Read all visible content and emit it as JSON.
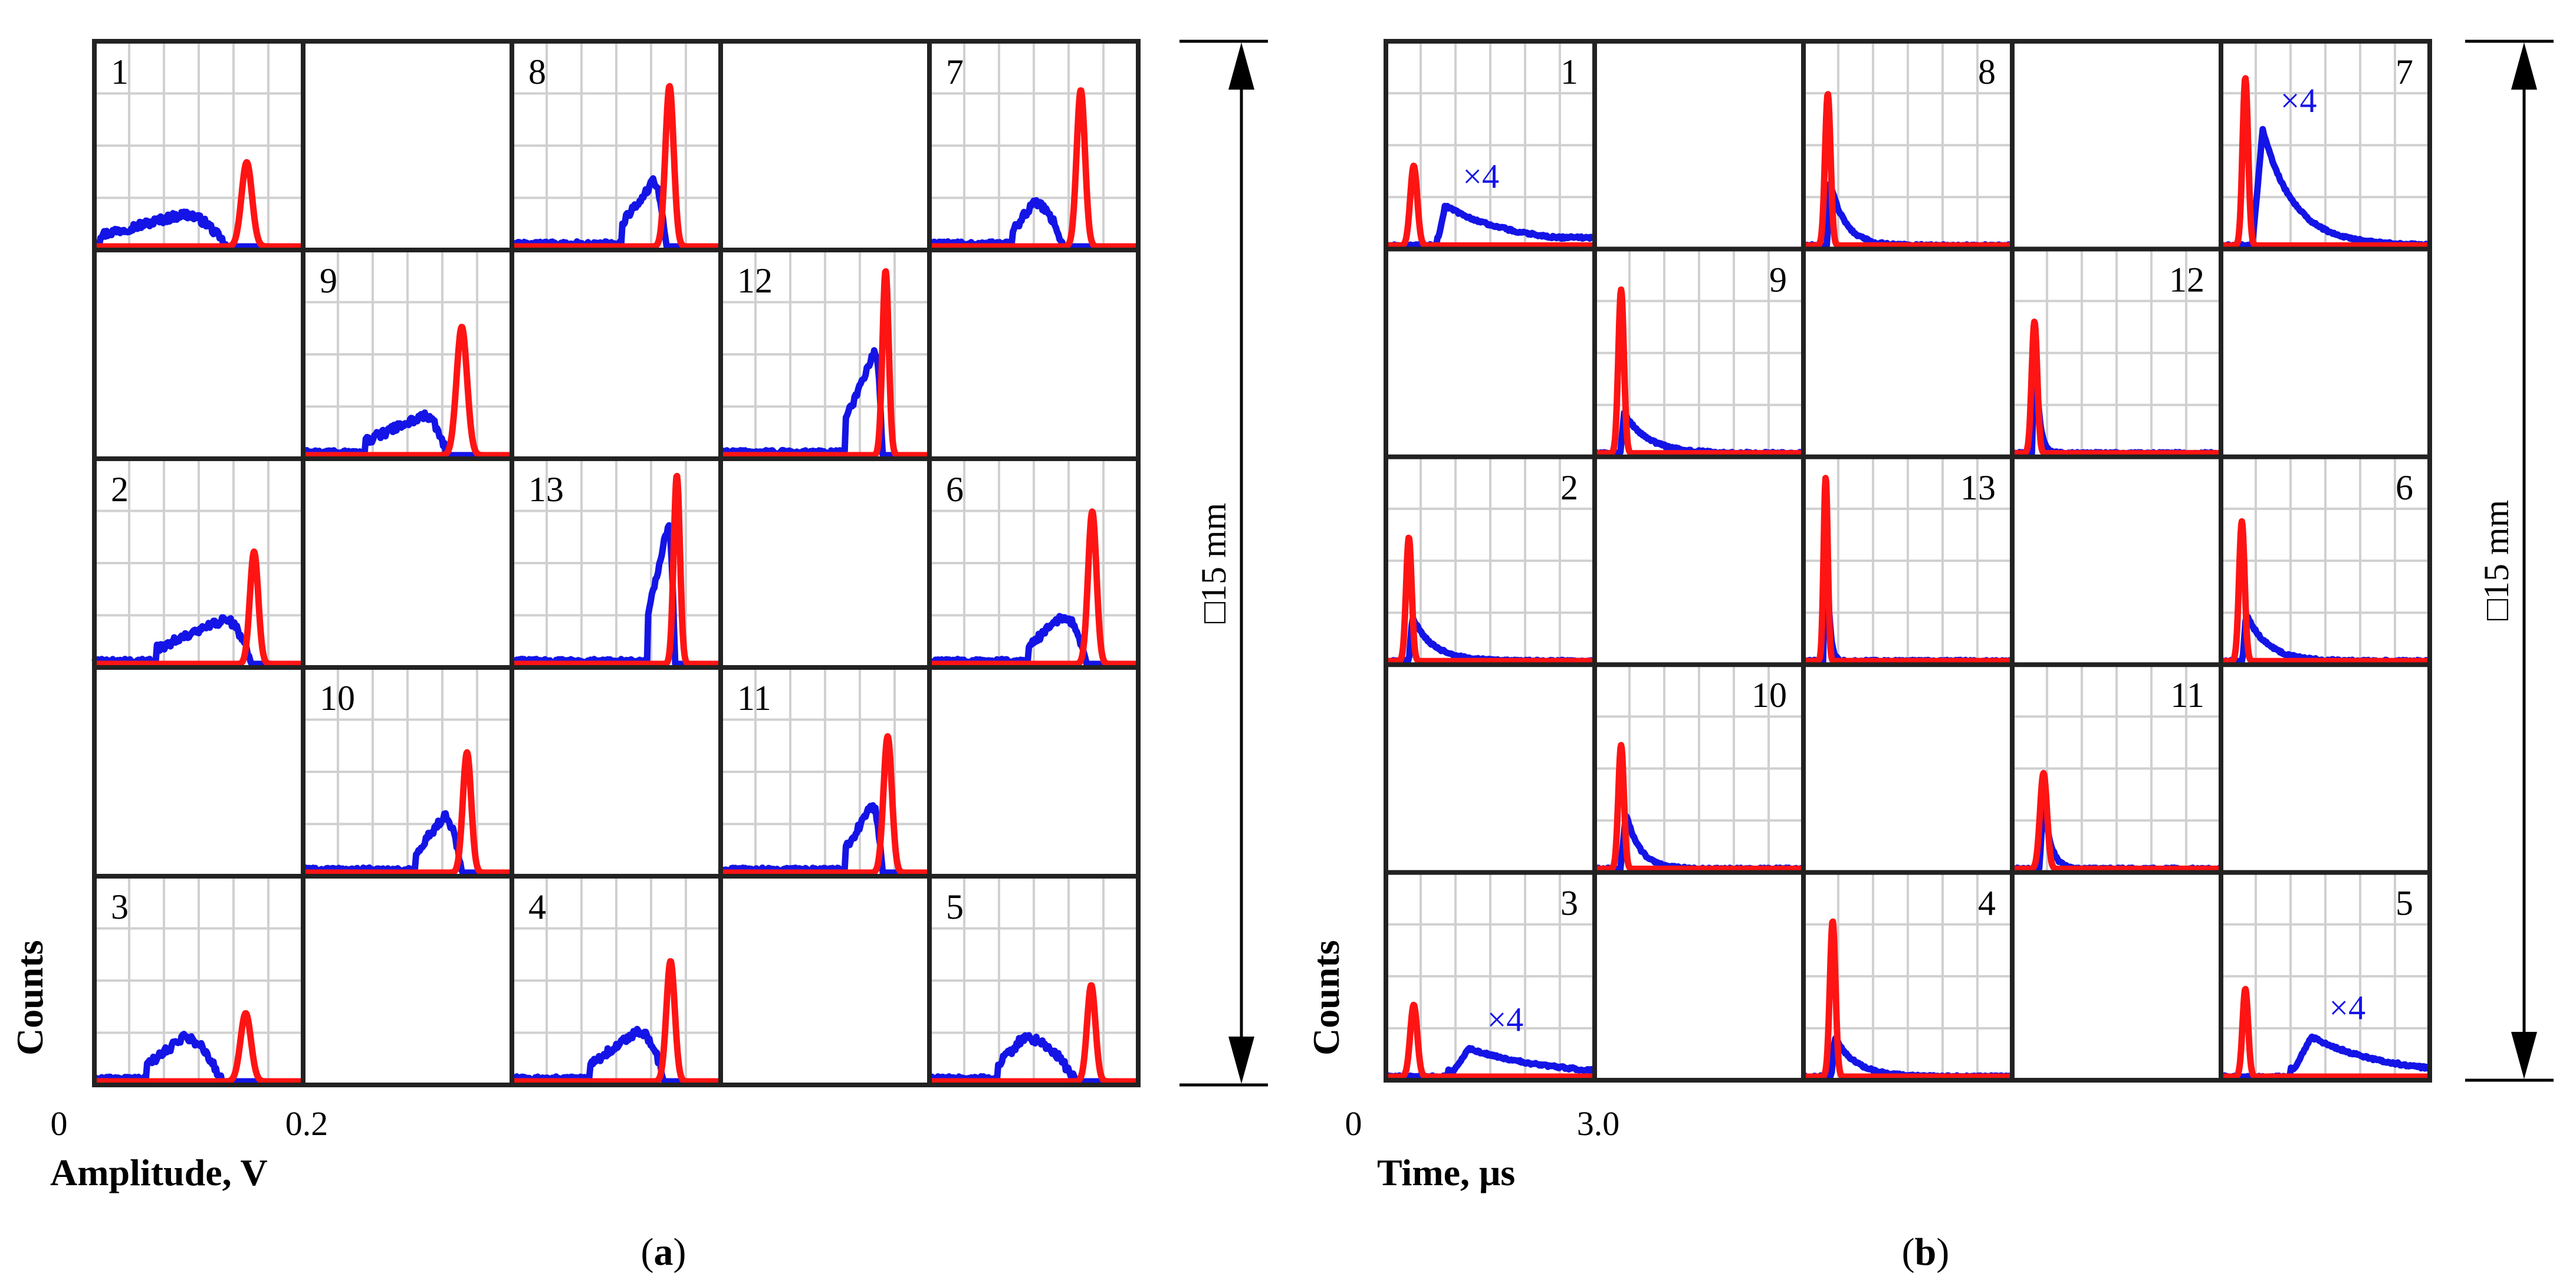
{
  "figure": {
    "colors": {
      "red": "#ff1414",
      "blue": "#1414e6",
      "grid": "#d0d0d0",
      "frame": "#222222"
    },
    "dimension_label": "□15 mm"
  },
  "chart_data": [
    {
      "type": "line",
      "panel_label": "(a)",
      "caption_letter": "a",
      "xlabel": "Amplitude, V",
      "ylabel": "Counts",
      "x_tick_start": "0",
      "x_tick_end": "0.2",
      "xlim": [
        0,
        0.2
      ],
      "series_names": [
        "red",
        "blue"
      ],
      "layout": [
        [
          1,
          null,
          8,
          null,
          7
        ],
        [
          null,
          9,
          null,
          12,
          null
        ],
        [
          2,
          null,
          13,
          null,
          6
        ],
        [
          null,
          10,
          null,
          11,
          null
        ],
        [
          3,
          null,
          4,
          null,
          5
        ]
      ],
      "cells": [
        {
          "id": 1,
          "red": {
            "peak_x": 0.146,
            "height": 0.42,
            "width": 0.005
          },
          "blue": {
            "type": "broad",
            "start": 0.005,
            "end": 0.126,
            "height": 0.16,
            "center": 0.085
          }
        },
        {
          "id": 8,
          "red": {
            "peak_x": 0.151,
            "height": 0.8,
            "width": 0.004
          },
          "blue": {
            "type": "broad",
            "start": 0.105,
            "end": 0.148,
            "height": 0.32,
            "center": 0.135
          }
        },
        {
          "id": 7,
          "red": {
            "peak_x": 0.145,
            "height": 0.78,
            "width": 0.004
          },
          "blue": {
            "type": "broad",
            "start": 0.08,
            "end": 0.128,
            "height": 0.22,
            "center": 0.1
          }
        },
        {
          "id": 9,
          "red": {
            "peak_x": 0.152,
            "height": 0.64,
            "width": 0.005
          },
          "blue": {
            "type": "broad",
            "start": 0.06,
            "end": 0.138,
            "height": 0.2,
            "center": 0.115
          }
        },
        {
          "id": 12,
          "red": {
            "peak_x": 0.158,
            "height": 0.92,
            "width": 0.003
          },
          "blue": {
            "type": "broad",
            "start": 0.12,
            "end": 0.155,
            "height": 0.52,
            "center": 0.148
          }
        },
        {
          "id": 2,
          "red": {
            "peak_x": 0.153,
            "height": 0.56,
            "width": 0.004
          },
          "blue": {
            "type": "broad",
            "start": 0.06,
            "end": 0.15,
            "height": 0.22,
            "center": 0.125
          }
        },
        {
          "id": 13,
          "red": {
            "peak_x": 0.158,
            "height": 0.94,
            "width": 0.003
          },
          "blue": {
            "type": "broad",
            "start": 0.13,
            "end": 0.156,
            "height": 0.7,
            "center": 0.15
          }
        },
        {
          "id": 6,
          "red": {
            "peak_x": 0.156,
            "height": 0.76,
            "width": 0.004
          },
          "blue": {
            "type": "broad",
            "start": 0.095,
            "end": 0.15,
            "height": 0.24,
            "center": 0.128
          }
        },
        {
          "id": 10,
          "red": {
            "peak_x": 0.157,
            "height": 0.6,
            "width": 0.004
          },
          "blue": {
            "type": "broad",
            "start": 0.108,
            "end": 0.152,
            "height": 0.28,
            "center": 0.135
          }
        },
        {
          "id": 11,
          "red": {
            "peak_x": 0.16,
            "height": 0.68,
            "width": 0.004
          },
          "blue": {
            "type": "broad",
            "start": 0.12,
            "end": 0.155,
            "height": 0.34,
            "center": 0.145
          }
        },
        {
          "id": 3,
          "red": {
            "peak_x": 0.145,
            "height": 0.34,
            "width": 0.005
          },
          "blue": {
            "type": "broad",
            "start": 0.05,
            "end": 0.122,
            "height": 0.22,
            "center": 0.085
          }
        },
        {
          "id": 4,
          "red": {
            "peak_x": 0.152,
            "height": 0.6,
            "width": 0.004
          },
          "blue": {
            "type": "broad",
            "start": 0.075,
            "end": 0.146,
            "height": 0.25,
            "center": 0.122
          }
        },
        {
          "id": 5,
          "red": {
            "peak_x": 0.155,
            "height": 0.48,
            "width": 0.004
          },
          "blue": {
            "type": "broad",
            "start": 0.065,
            "end": 0.14,
            "height": 0.22,
            "center": 0.09
          }
        }
      ]
    },
    {
      "type": "line",
      "panel_label": "(b)",
      "caption_letter": "b",
      "xlabel": "Time, μs",
      "ylabel": "Counts",
      "x_tick_start": "0",
      "x_tick_end": "3.0",
      "xlim": [
        0,
        3.0
      ],
      "series_names": [
        "red",
        "blue"
      ],
      "layout": [
        [
          1,
          null,
          8,
          null,
          7
        ],
        [
          null,
          9,
          null,
          12,
          null
        ],
        [
          2,
          null,
          13,
          null,
          6
        ],
        [
          null,
          10,
          null,
          11,
          null
        ],
        [
          3,
          null,
          4,
          null,
          5
        ]
      ],
      "cells": [
        {
          "id": 1,
          "red": {
            "peak_x": 0.4,
            "height": 0.4,
            "width": 0.05
          },
          "blue": {
            "type": "decay",
            "peak_x": 0.85,
            "height": 0.2,
            "rise": 0.12,
            "decay": 1.0,
            "plateau": 0.04
          },
          "annotation": "×4"
        },
        {
          "id": 8,
          "red": {
            "peak_x": 0.35,
            "height": 0.76,
            "width": 0.04
          },
          "blue": {
            "type": "decay",
            "peak_x": 0.38,
            "height": 0.32,
            "rise": 0.04,
            "decay": 0.22
          }
        },
        {
          "id": 7,
          "red": {
            "peak_x": 0.35,
            "height": 0.84,
            "width": 0.04
          },
          "blue": {
            "type": "decay",
            "peak_x": 0.6,
            "height": 0.58,
            "rise": 0.15,
            "decay": 0.45
          },
          "annotation": "×4"
        },
        {
          "id": 9,
          "red": {
            "peak_x": 0.38,
            "height": 0.82,
            "width": 0.04
          },
          "blue": {
            "type": "decay",
            "peak_x": 0.42,
            "height": 0.2,
            "rise": 0.05,
            "decay": 0.35
          }
        },
        {
          "id": 12,
          "red": {
            "peak_x": 0.32,
            "height": 0.66,
            "width": 0.04
          },
          "blue": {
            "type": "decay",
            "peak_x": 0.32,
            "height": 0.62,
            "rise": 0.03,
            "decay": 0.06
          }
        },
        {
          "id": 2,
          "red": {
            "peak_x": 0.33,
            "height": 0.62,
            "width": 0.04
          },
          "blue": {
            "type": "decay",
            "peak_x": 0.38,
            "height": 0.22,
            "rise": 0.05,
            "decay": 0.3
          }
        },
        {
          "id": 13,
          "red": {
            "peak_x": 0.32,
            "height": 0.92,
            "width": 0.03
          },
          "blue": {
            "type": "decay",
            "peak_x": 0.32,
            "height": 0.88,
            "rise": 0.03,
            "decay": 0.04
          }
        },
        {
          "id": 6,
          "red": {
            "peak_x": 0.3,
            "height": 0.7,
            "width": 0.04
          },
          "blue": {
            "type": "decay",
            "peak_x": 0.36,
            "height": 0.24,
            "rise": 0.05,
            "decay": 0.3
          }
        },
        {
          "id": 10,
          "red": {
            "peak_x": 0.38,
            "height": 0.62,
            "width": 0.04
          },
          "blue": {
            "type": "decay",
            "peak_x": 0.45,
            "height": 0.28,
            "rise": 0.08,
            "decay": 0.2
          }
        },
        {
          "id": 11,
          "red": {
            "peak_x": 0.45,
            "height": 0.48,
            "width": 0.05
          },
          "blue": {
            "type": "decay",
            "peak_x": 0.45,
            "height": 0.36,
            "rise": 0.06,
            "decay": 0.1
          }
        },
        {
          "id": 3,
          "red": {
            "peak_x": 0.4,
            "height": 0.36,
            "width": 0.05
          },
          "blue": {
            "type": "decay",
            "peak_x": 1.2,
            "height": 0.14,
            "rise": 0.3,
            "decay": 1.2,
            "plateau": 0.03
          },
          "annotation": "×4"
        },
        {
          "id": 4,
          "red": {
            "peak_x": 0.42,
            "height": 0.78,
            "width": 0.04
          },
          "blue": {
            "type": "decay",
            "peak_x": 0.45,
            "height": 0.2,
            "rise": 0.05,
            "decay": 0.3
          }
        },
        {
          "id": 5,
          "red": {
            "peak_x": 0.35,
            "height": 0.44,
            "width": 0.04
          },
          "blue": {
            "type": "decay",
            "peak_x": 1.3,
            "height": 0.2,
            "rise": 0.3,
            "decay": 1.1,
            "plateau": 0.04
          },
          "annotation": "×4"
        }
      ]
    }
  ]
}
